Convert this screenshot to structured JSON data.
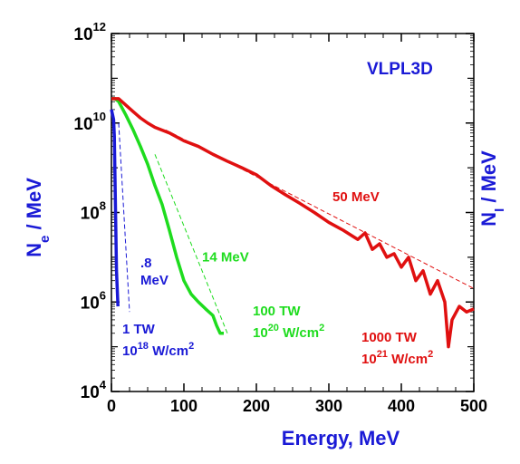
{
  "chart_data": {
    "type": "line",
    "title": "VLPL3D",
    "xlabel": "Energy, MeV",
    "ylabel_left": {
      "base": "N",
      "sub": "e",
      "rest": " / MeV"
    },
    "ylabel_right": {
      "base": "N",
      "sub": "I",
      "rest": " / MeV"
    },
    "xlim": [
      0,
      500
    ],
    "ylim": [
      10000,
      1000000000000
    ],
    "yscale": "log",
    "x_ticks": [
      "0",
      "100",
      "200",
      "300",
      "400",
      "500"
    ],
    "y_ticks": [
      {
        "base": "10",
        "exp": "4"
      },
      {
        "base": "10",
        "exp": "6"
      },
      {
        "base": "10",
        "exp": "8"
      },
      {
        "base": "10",
        "exp": "10"
      },
      {
        "base": "10",
        "exp": "12"
      }
    ],
    "grid": false,
    "colors": {
      "blue": "#1a1ad6",
      "green": "#1edc1e",
      "red": "#e01010",
      "axis": "#000000"
    },
    "series": [
      {
        "color": "#1a1ad6",
        "x": [
          0,
          3,
          4,
          5,
          6,
          7,
          8,
          9
        ],
        "y": [
          20000000000.0,
          12000000000.0,
          5000000000.0,
          500000000.0,
          50000000.0,
          5000000.0,
          2000000.0,
          800000.0
        ]
      },
      {
        "color": "#1edc1e",
        "x": [
          0,
          5,
          10,
          20,
          30,
          40,
          50,
          60,
          70,
          80,
          90,
          100,
          110,
          120,
          130,
          140,
          145,
          150,
          155
        ],
        "y": [
          35000000000.0,
          35000000000.0,
          30000000000.0,
          15000000000.0,
          7000000000.0,
          3000000000.0,
          1200000000.0,
          400000000.0,
          150000000.0,
          40000000.0,
          10000000.0,
          3000000.0,
          1500000.0,
          1000000.0,
          700000.0,
          500000.0,
          300000.0,
          200000.0,
          200000.0
        ]
      },
      {
        "color": "#e01010",
        "x": [
          0,
          10,
          20,
          30,
          40,
          50,
          60,
          80,
          100,
          120,
          140,
          160,
          180,
          200,
          220,
          240,
          260,
          280,
          300,
          320,
          340,
          350,
          360,
          370,
          380,
          390,
          400,
          410,
          420,
          430,
          440,
          450,
          460,
          465,
          470,
          480,
          490,
          500
        ],
        "y": [
          35000000000.0,
          35000000000.0,
          25000000000.0,
          18000000000.0,
          13000000000.0,
          10000000000.0,
          8000000000.0,
          6000000000.0,
          4000000000.0,
          3000000000.0,
          2000000000.0,
          1400000000.0,
          1000000000.0,
          700000000.0,
          400000000.0,
          250000000.0,
          160000000.0,
          100000000.0,
          60000000.0,
          40000000.0,
          25000000.0,
          35000000.0,
          15000000.0,
          20000000.0,
          10000000.0,
          12000000.0,
          6000000.0,
          10000000.0,
          3000000.0,
          5000000.0,
          1500000.0,
          3000000.0,
          1000000.0,
          100000.0,
          400000.0,
          800000.0,
          600000.0,
          700000.0
        ]
      }
    ],
    "fits": [
      {
        "color": "#1a1ad6",
        "x": [
          10,
          25
        ],
        "y": [
          10000000000.0,
          600000.0
        ]
      },
      {
        "color": "#1edc1e",
        "x": [
          60,
          160
        ],
        "y": [
          2000000000.0,
          200000.0
        ]
      },
      {
        "color": "#e01010",
        "x": [
          75,
          500
        ],
        "y": [
          7000000000.0,
          2000000.0
        ]
      }
    ],
    "annotations": [
      {
        "lines": [
          ".8",
          "MeV"
        ],
        "color": "#1a1ad6",
        "x": 40,
        "y": 6000000.0
      },
      {
        "lines": [
          "14 MeV"
        ],
        "color": "#1edc1e",
        "x": 125,
        "y": 8000000.0
      },
      {
        "lines": [
          "50 MeV"
        ],
        "color": "#e01010",
        "x": 305,
        "y": 180000000.0
      },
      {
        "lines": [
          "1 TW"
        ],
        "color": "#1a1ad6",
        "x": 15,
        "y": 200000.0,
        "sup_line": {
          "base": "10",
          "exp": "18",
          "rest": " W/cm",
          "exp2": "2"
        }
      },
      {
        "lines": [
          "100 TW"
        ],
        "color": "#1edc1e",
        "x": 195,
        "y": 500000.0,
        "sup_line": {
          "base": "10",
          "exp": "20",
          "rest": " W/cm",
          "exp2": "2"
        }
      },
      {
        "lines": [
          "1000 TW"
        ],
        "color": "#e01010",
        "x": 345,
        "y": 130000.0,
        "sup_line": {
          "base": "10",
          "exp": "21",
          "rest": " W/cm",
          "exp2": "2"
        }
      }
    ]
  }
}
